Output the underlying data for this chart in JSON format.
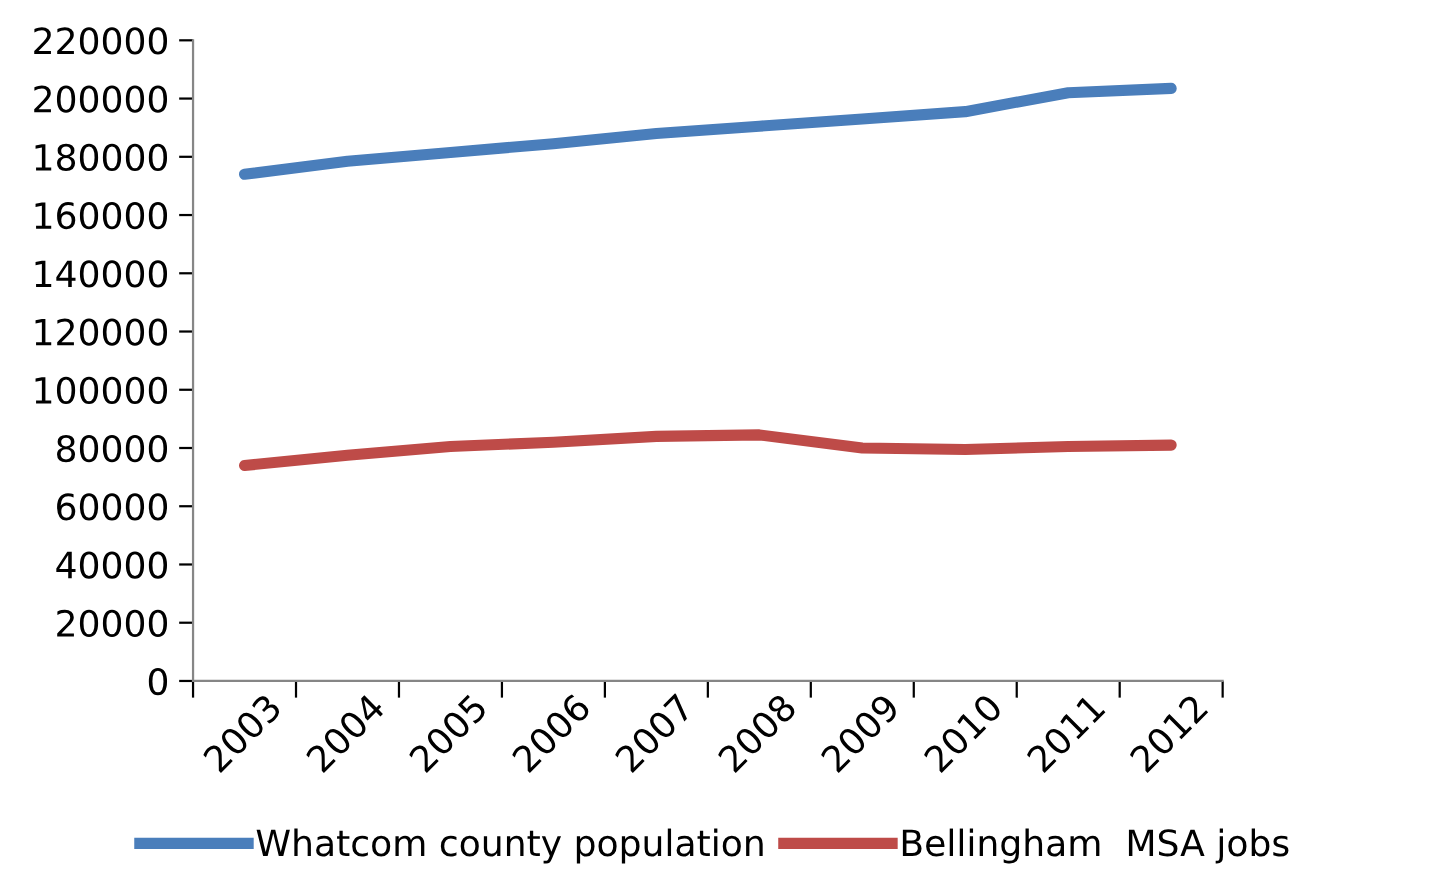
{
  "chart_data": {
    "type": "line",
    "categories": [
      "2003",
      "2004",
      "2005",
      "2006",
      "2007",
      "2008",
      "2009",
      "2010",
      "2011",
      "2012"
    ],
    "series": [
      {
        "name": "Whatcom county population",
        "color": "#4a7ebb",
        "values": [
          174000,
          178500,
          181500,
          184500,
          188000,
          190500,
          193000,
          195500,
          202000,
          203500
        ]
      },
      {
        "name": "Bellingham  MSA jobs",
        "color": "#be4b48",
        "values": [
          74000,
          77500,
          80500,
          82000,
          84000,
          84500,
          80000,
          79500,
          80500,
          81000
        ]
      }
    ],
    "ylim": [
      0,
      220000
    ],
    "yticks": [
      0,
      20000,
      40000,
      60000,
      80000,
      100000,
      120000,
      140000,
      160000,
      180000,
      200000,
      220000
    ],
    "grid": false,
    "legend": "bottom",
    "marker": "none",
    "line_style": "solid"
  }
}
